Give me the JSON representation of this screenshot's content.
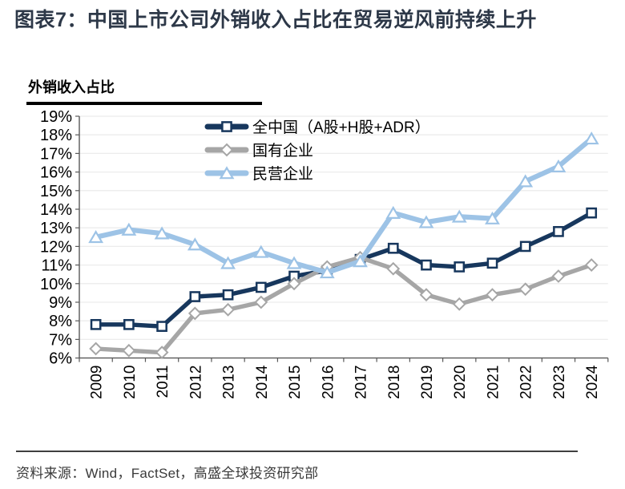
{
  "header": {
    "title": "图表7：中国上市公司外销收入占比在贸易逆风前持续上升"
  },
  "chart": {
    "subtitle": "外销收入占比"
  },
  "chart_data": {
    "type": "line",
    "title": "外销收入占比",
    "x": [
      2009,
      2010,
      2011,
      2012,
      2013,
      2014,
      2015,
      2016,
      2017,
      2018,
      2019,
      2020,
      2021,
      2022,
      2023,
      2024
    ],
    "series": [
      {
        "name": "全中国（A股+H股+ADR）",
        "marker": "square",
        "color": "#17375d",
        "values": [
          7.8,
          7.8,
          7.7,
          9.3,
          9.4,
          9.8,
          10.4,
          10.7,
          11.3,
          11.9,
          11.0,
          10.9,
          11.1,
          12.0,
          12.8,
          13.8
        ]
      },
      {
        "name": "国有企业",
        "marker": "diamond",
        "color": "#a6a6a6",
        "values": [
          6.5,
          6.4,
          6.3,
          8.4,
          8.6,
          9.0,
          10.0,
          10.9,
          11.4,
          10.8,
          9.4,
          8.9,
          9.4,
          9.7,
          10.4,
          11.0
        ]
      },
      {
        "name": "民营企业",
        "marker": "triangle",
        "color": "#9dc3e6",
        "values": [
          12.5,
          12.9,
          12.7,
          12.1,
          11.1,
          11.7,
          11.1,
          10.6,
          11.2,
          13.8,
          13.3,
          13.6,
          13.5,
          15.5,
          16.3,
          17.8
        ]
      }
    ],
    "ylim": [
      6,
      19
    ],
    "ytick_step": 1,
    "ytick_format": "percent",
    "grid": true,
    "legend_position": "top-inside",
    "axis_color": "#595959",
    "grid_color": "#ececec"
  },
  "source": {
    "text": "资料来源：Wind，FactSet，高盛全球投资研究部"
  }
}
